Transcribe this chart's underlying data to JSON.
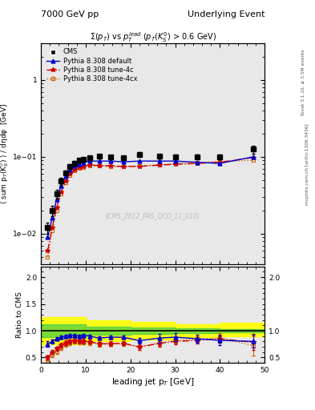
{
  "title_left": "7000 GeV pp",
  "title_right": "Underlying Event",
  "plot_title": "#Sigma(p_{T}) vs p_{T}^{lead} (p_{T}(K_{S}^{0}) > 0.6 GeV)",
  "watermark": "(CMS_2012_PAS_QCD_11_010)",
  "right_label": "mcplots.cern.ch [arXiv:1306.3436]",
  "rivet_label": "Rivet 3.1.10, ≥ 3.5M events",
  "xlabel": "leading jet p$_T$ [GeV]",
  "ylabel": "⟨ sum p$_T$(K$_S^0$) ⟩ / dηdφ  [GeV]",
  "ratio_ylabel": "Ratio to CMS",
  "xlim": [
    0,
    50
  ],
  "ylim_log": [
    0.004,
    3.0
  ],
  "ylim_ratio": [
    0.4,
    2.2
  ],
  "cms_x": [
    1.5,
    2.5,
    3.5,
    4.5,
    5.5,
    6.5,
    7.5,
    8.5,
    9.5,
    11.0,
    13.0,
    15.5,
    18.5,
    22.0,
    26.5,
    30.0,
    35.0,
    40.0,
    47.5
  ],
  "cms_y": [
    0.012,
    0.02,
    0.033,
    0.048,
    0.062,
    0.075,
    0.083,
    0.09,
    0.093,
    0.098,
    0.102,
    0.1,
    0.098,
    0.108,
    0.102,
    0.1,
    0.1,
    0.1,
    0.125
  ],
  "cms_yerr": [
    0.002,
    0.003,
    0.004,
    0.005,
    0.005,
    0.005,
    0.005,
    0.005,
    0.005,
    0.005,
    0.005,
    0.005,
    0.005,
    0.006,
    0.006,
    0.006,
    0.006,
    0.007,
    0.015
  ],
  "py_default_x": [
    1.5,
    2.5,
    3.5,
    4.5,
    5.5,
    6.5,
    7.5,
    8.5,
    9.5,
    11.0,
    13.0,
    15.5,
    18.5,
    22.0,
    26.5,
    30.0,
    35.0,
    40.0,
    47.5
  ],
  "py_default_y": [
    0.009,
    0.016,
    0.028,
    0.042,
    0.056,
    0.068,
    0.076,
    0.081,
    0.085,
    0.088,
    0.088,
    0.088,
    0.086,
    0.088,
    0.088,
    0.088,
    0.085,
    0.082,
    0.1
  ],
  "py_4c_x": [
    1.5,
    2.5,
    3.5,
    4.5,
    5.5,
    6.5,
    7.5,
    8.5,
    9.5,
    11.0,
    13.0,
    15.5,
    18.5,
    22.0,
    26.5,
    30.0,
    35.0,
    40.0,
    47.5
  ],
  "py_4c_y": [
    0.006,
    0.012,
    0.022,
    0.035,
    0.048,
    0.06,
    0.068,
    0.073,
    0.075,
    0.078,
    0.077,
    0.076,
    0.075,
    0.075,
    0.078,
    0.08,
    0.082,
    0.085,
    0.098
  ],
  "py_4cx_x": [
    1.5,
    2.5,
    3.5,
    4.5,
    5.5,
    6.5,
    7.5,
    8.5,
    9.5,
    11.0,
    13.0,
    15.5,
    18.5,
    22.0,
    26.5,
    30.0,
    35.0,
    40.0,
    47.5
  ],
  "py_4cx_y": [
    0.005,
    0.011,
    0.02,
    0.033,
    0.046,
    0.058,
    0.066,
    0.071,
    0.073,
    0.076,
    0.076,
    0.075,
    0.074,
    0.076,
    0.079,
    0.082,
    0.084,
    0.087,
    0.09
  ],
  "ratio_default_y": [
    0.75,
    0.8,
    0.85,
    0.875,
    0.9,
    0.91,
    0.915,
    0.9,
    0.913,
    0.898,
    0.863,
    0.88,
    0.878,
    0.815,
    0.863,
    0.88,
    0.85,
    0.82,
    0.8
  ],
  "ratio_4c_y": [
    0.5,
    0.6,
    0.667,
    0.729,
    0.774,
    0.8,
    0.819,
    0.811,
    0.806,
    0.796,
    0.755,
    0.76,
    0.765,
    0.694,
    0.765,
    0.8,
    0.82,
    0.85,
    0.784
  ],
  "ratio_4cx_y": [
    0.417,
    0.55,
    0.606,
    0.688,
    0.742,
    0.773,
    0.795,
    0.789,
    0.785,
    0.776,
    0.745,
    0.75,
    0.755,
    0.703,
    0.775,
    0.82,
    0.84,
    0.87,
    0.72
  ],
  "ratio_default_yerr": [
    0.05,
    0.04,
    0.03,
    0.03,
    0.03,
    0.03,
    0.03,
    0.03,
    0.03,
    0.03,
    0.03,
    0.03,
    0.03,
    0.05,
    0.08,
    0.07,
    0.07,
    0.09,
    0.12
  ],
  "ratio_4c_yerr": [
    0.04,
    0.04,
    0.04,
    0.04,
    0.04,
    0.04,
    0.04,
    0.04,
    0.04,
    0.04,
    0.04,
    0.04,
    0.04,
    0.06,
    0.06,
    0.06,
    0.06,
    0.08,
    0.15
  ],
  "ratio_4cx_yerr": [
    0.04,
    0.04,
    0.04,
    0.04,
    0.04,
    0.04,
    0.04,
    0.04,
    0.04,
    0.04,
    0.04,
    0.04,
    0.04,
    0.06,
    0.06,
    0.06,
    0.06,
    0.08,
    0.18
  ],
  "green_band_x": [
    0,
    10,
    20,
    30,
    40,
    50
  ],
  "green_band_lo": [
    0.88,
    0.92,
    0.94,
    0.96,
    0.97,
    0.97
  ],
  "green_band_hi": [
    1.12,
    1.08,
    1.06,
    1.04,
    1.03,
    1.03
  ],
  "yellow_band_x": [
    0,
    10,
    20,
    30,
    40,
    50
  ],
  "yellow_band_lo": [
    0.75,
    0.8,
    0.84,
    0.88,
    0.9,
    0.88
  ],
  "yellow_band_hi": [
    1.25,
    1.2,
    1.16,
    1.12,
    1.15,
    1.25
  ],
  "color_cms": "#000000",
  "color_default": "#0000cc",
  "color_4c": "#cc0000",
  "color_4cx": "#cc6600",
  "bg_color": "#e8e8e8"
}
